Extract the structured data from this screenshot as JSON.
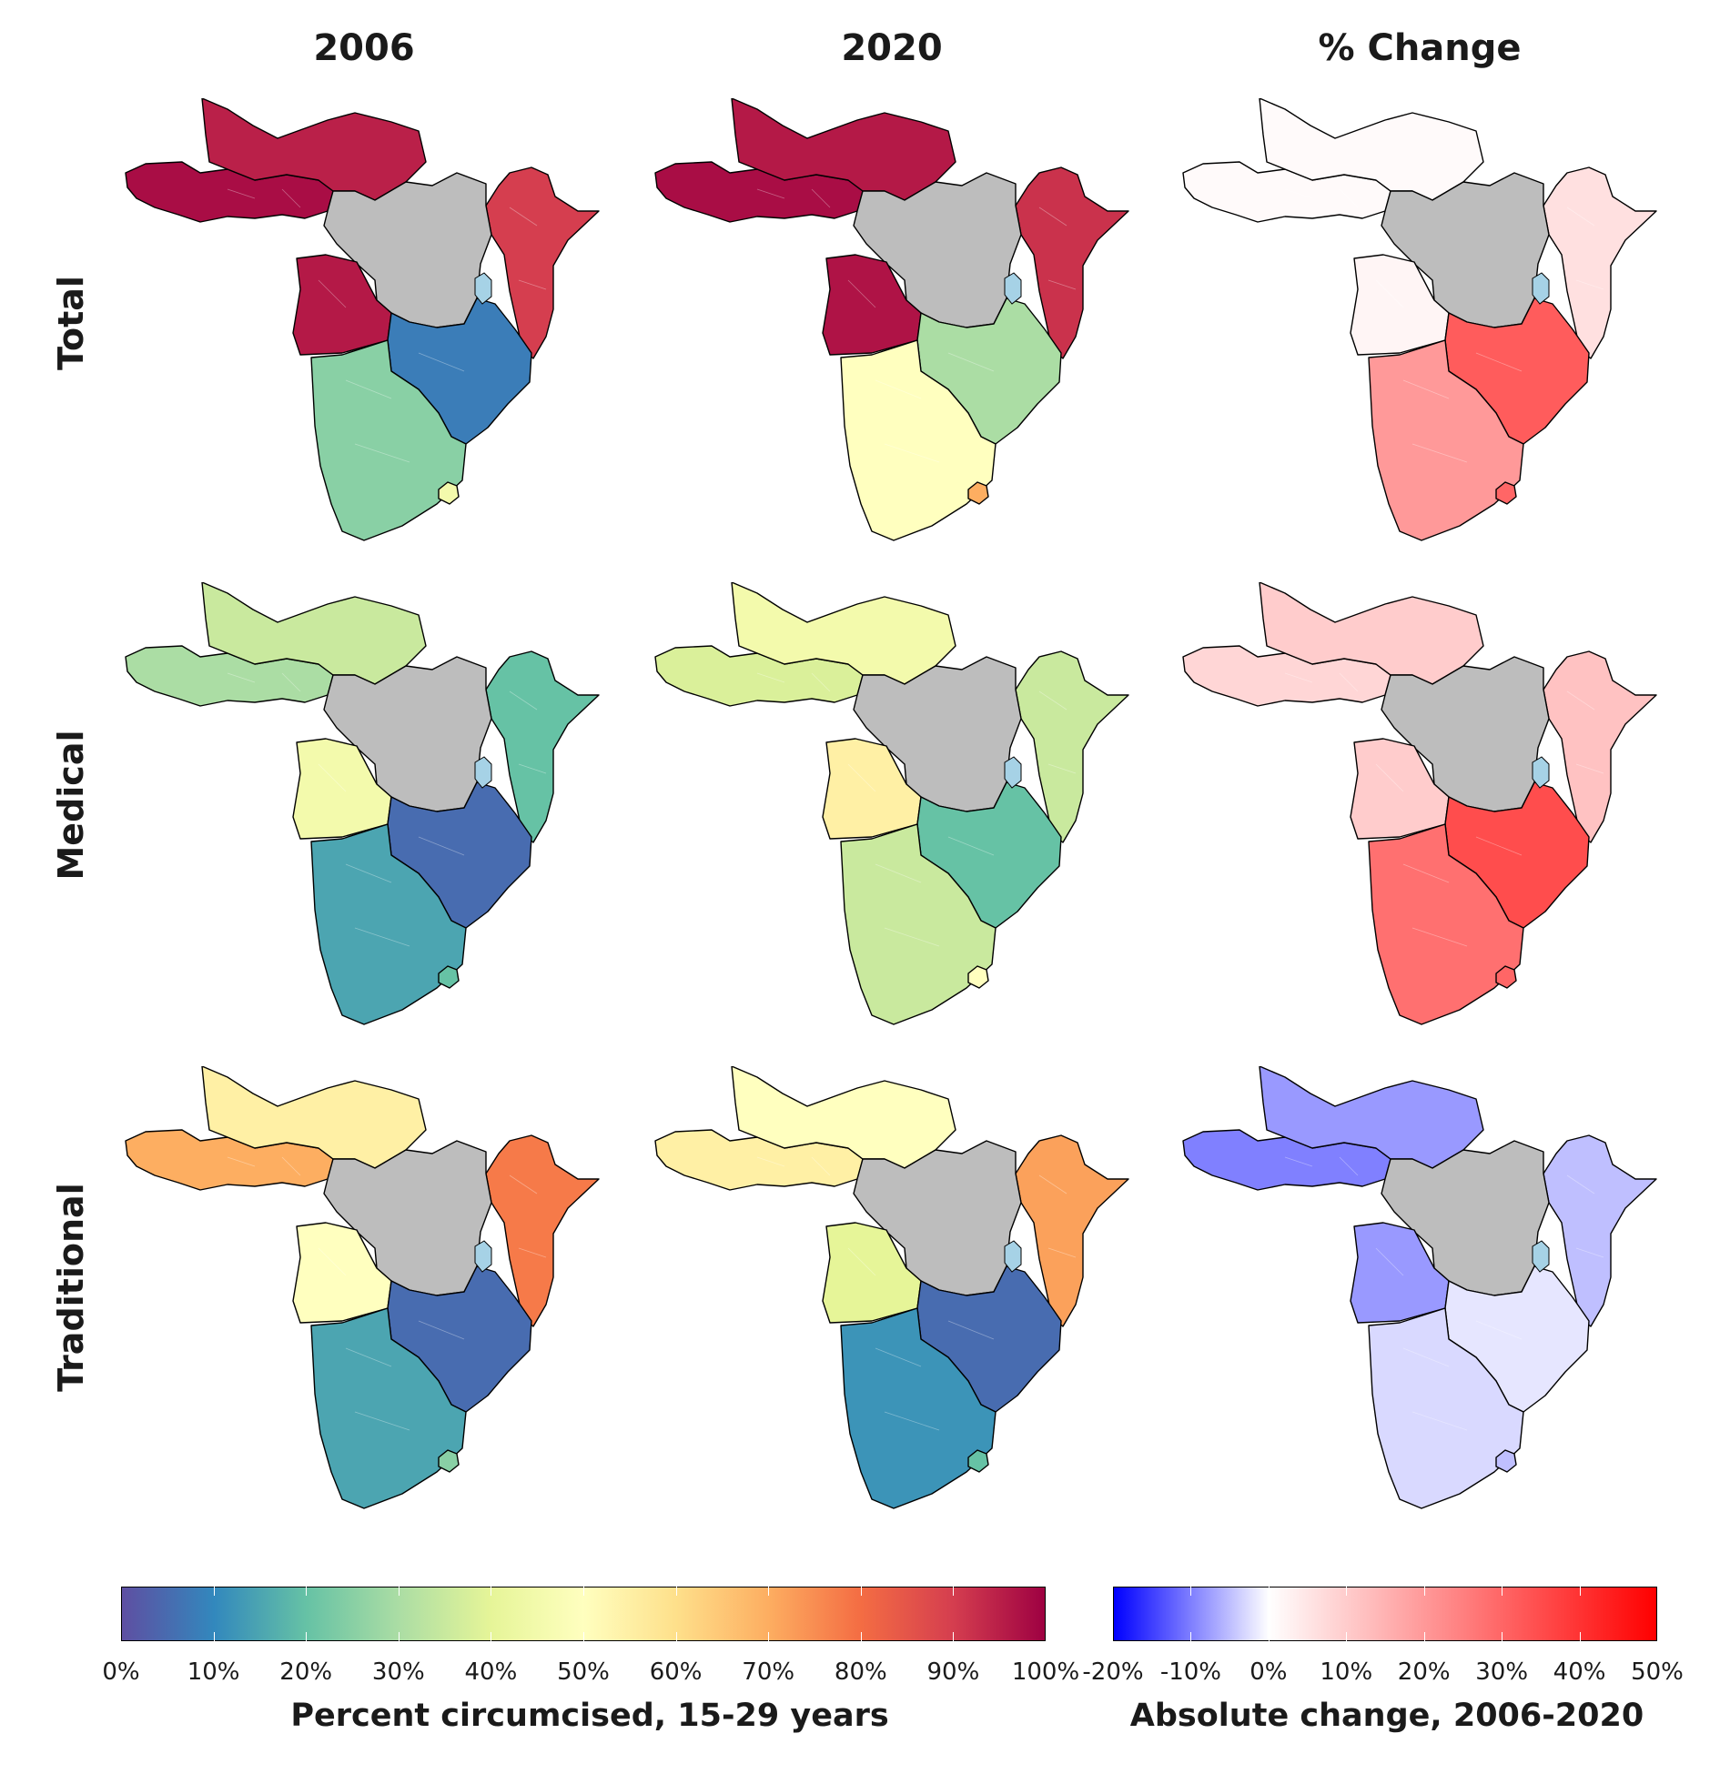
{
  "columns": [
    "2006",
    "2020",
    "% Change"
  ],
  "rows": [
    "Total",
    "Medical",
    "Traditional"
  ],
  "legend_left": {
    "title": "Percent circumcised, 15-29 years",
    "ticks": [
      "0%",
      "10%",
      "20%",
      "30%",
      "40%",
      "50%",
      "60%",
      "70%",
      "80%",
      "90%",
      "100%"
    ],
    "colors": [
      "#5e4fa2",
      "#3288bd",
      "#66c2a5",
      "#abdda4",
      "#e6f598",
      "#ffffbf",
      "#fee08b",
      "#fdae61",
      "#f46d43",
      "#d53e4f",
      "#9e0142"
    ]
  },
  "legend_right": {
    "title": "Absolute change, 2006-2020",
    "ticks": [
      "-20%",
      "-10%",
      "0%",
      "10%",
      "20%",
      "30%",
      "40%",
      "50%"
    ],
    "colors": [
      "#0000ff",
      "#ffffff",
      "#ff0000"
    ]
  },
  "no_data_color": "#bdbdbd",
  "lake_color": "#a6d2e6",
  "regions": [
    "west",
    "sahel",
    "east",
    "central",
    "angola",
    "southeast",
    "southern",
    "lesotho"
  ],
  "panels": [
    {
      "row": "Total",
      "column": "2006",
      "fill": {
        "west": 98,
        "sahel": 95,
        "east": 90,
        "central": null,
        "angola": 96,
        "southeast": 8,
        "southern": 25,
        "lesotho": 45
      }
    },
    {
      "row": "Total",
      "column": "2020",
      "fill": {
        "west": 98,
        "sahel": 96,
        "east": 92,
        "central": null,
        "angola": 97,
        "southeast": 30,
        "southern": 50,
        "lesotho": 70
      }
    },
    {
      "row": "Total",
      "column": "% Change",
      "fill": {
        "west": 1,
        "sahel": 1,
        "east": 6,
        "central": null,
        "angola": 2,
        "southeast": 32,
        "southern": 20,
        "lesotho": 30
      }
    },
    {
      "row": "Medical",
      "column": "2006",
      "fill": {
        "west": 30,
        "sahel": 35,
        "east": 20,
        "central": null,
        "angola": 45,
        "southeast": 5,
        "southern": 15,
        "lesotho": 20
      }
    },
    {
      "row": "Medical",
      "column": "2020",
      "fill": {
        "west": 38,
        "sahel": 45,
        "east": 35,
        "central": null,
        "angola": 55,
        "southeast": 20,
        "southern": 35,
        "lesotho": 50
      }
    },
    {
      "row": "Medical",
      "column": "% Change",
      "fill": {
        "west": 8,
        "sahel": 10,
        "east": 12,
        "central": null,
        "angola": 10,
        "southeast": 35,
        "southern": 28,
        "lesotho": 30
      }
    },
    {
      "row": "Traditional",
      "column": "2006",
      "fill": {
        "west": 70,
        "sahel": 55,
        "east": 78,
        "central": null,
        "angola": 50,
        "southeast": 5,
        "southern": 15,
        "lesotho": 25
      }
    },
    {
      "row": "Traditional",
      "column": "2020",
      "fill": {
        "west": 55,
        "sahel": 50,
        "east": 72,
        "central": null,
        "angola": 40,
        "southeast": 5,
        "southern": 12,
        "lesotho": 20
      }
    },
    {
      "row": "Traditional",
      "column": "% Change",
      "fill": {
        "west": -10,
        "sahel": -8,
        "east": -5,
        "central": null,
        "angola": -8,
        "southeast": -2,
        "southern": -3,
        "lesotho": -5
      }
    }
  ]
}
